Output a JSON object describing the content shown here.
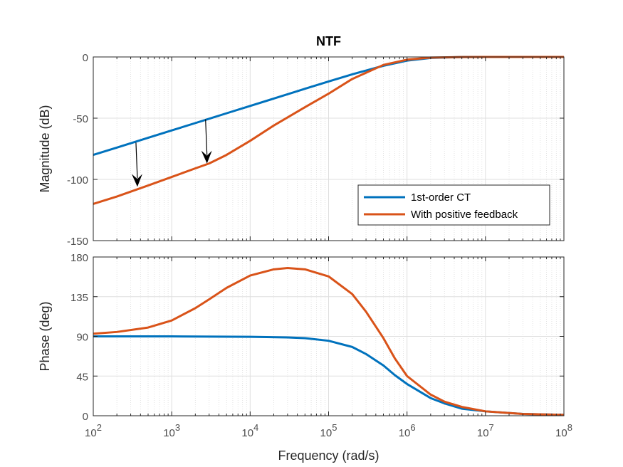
{
  "chart_data": [
    {
      "type": "line",
      "title": "NTF",
      "ylabel": "Magnitude (dB)",
      "xlabel": "",
      "x_scale": "log",
      "xlim": [
        100,
        100000000
      ],
      "ylim": [
        -150,
        0
      ],
      "yticks": [
        0,
        -50,
        -100,
        -150
      ],
      "grid": true,
      "legend_position": "bottom-right",
      "series": [
        {
          "name": "1st-order CT",
          "color": "#0072BD",
          "x": [
            100,
            200,
            500,
            1000,
            2000,
            3000,
            5000,
            10000,
            20000,
            50000,
            100000,
            200000,
            500000,
            1000000,
            2000000,
            5000000,
            10000000,
            100000000
          ],
          "y": [
            -80,
            -74,
            -66,
            -60,
            -54,
            -50.5,
            -46,
            -40,
            -34,
            -26,
            -20,
            -14.2,
            -7.2,
            -3,
            -0.8,
            -0.1,
            0,
            0
          ]
        },
        {
          "name": "With positive feedback",
          "color": "#D95319",
          "x": [
            100,
            200,
            500,
            1000,
            2000,
            3000,
            5000,
            10000,
            20000,
            50000,
            100000,
            200000,
            500000,
            1000000,
            2000000,
            5000000,
            10000000,
            100000000
          ],
          "y": [
            -120,
            -114,
            -105,
            -98,
            -91,
            -87,
            -80,
            -68.5,
            -56,
            -41,
            -30,
            -18,
            -6.5,
            -2.2,
            -0.5,
            -0.1,
            0,
            0
          ]
        }
      ],
      "annotations": [
        {
          "type": "arrow",
          "x": 350,
          "y_from": -70,
          "y_to": -106
        },
        {
          "type": "arrow",
          "x": 2700,
          "y_from": -51,
          "y_to": -87
        }
      ]
    },
    {
      "type": "line",
      "title": "",
      "ylabel": "Phase (deg)",
      "xlabel": "Frequency  (rad/s)",
      "x_scale": "log",
      "xlim": [
        100,
        100000000
      ],
      "ylim": [
        0,
        180
      ],
      "yticks": [
        0,
        45,
        90,
        135,
        180
      ],
      "xticks": [
        100,
        1000,
        10000,
        100000,
        1000000,
        10000000,
        100000000
      ],
      "xtick_labels": [
        {
          "base": "10",
          "exp": "2"
        },
        {
          "base": "10",
          "exp": "3"
        },
        {
          "base": "10",
          "exp": "4"
        },
        {
          "base": "10",
          "exp": "5"
        },
        {
          "base": "10",
          "exp": "6"
        },
        {
          "base": "10",
          "exp": "7"
        },
        {
          "base": "10",
          "exp": "8"
        }
      ],
      "grid": true,
      "series": [
        {
          "name": "1st-order CT",
          "color": "#0072BD",
          "x": [
            100,
            1000,
            10000,
            30000,
            50000,
            100000,
            200000,
            300000,
            500000,
            700000,
            1000000,
            2000000,
            3000000,
            5000000,
            10000000,
            30000000,
            100000000
          ],
          "y": [
            90,
            90,
            89.5,
            88.8,
            88,
            85,
            78,
            70,
            57,
            46,
            36,
            20,
            14,
            8,
            5,
            2,
            1
          ]
        },
        {
          "name": "With positive feedback",
          "color": "#D95319",
          "x": [
            100,
            200,
            500,
            1000,
            2000,
            3000,
            5000,
            10000,
            20000,
            30000,
            50000,
            100000,
            200000,
            300000,
            500000,
            700000,
            1000000,
            2000000,
            3000000,
            5000000,
            10000000,
            30000000,
            100000000
          ],
          "y": [
            93,
            95,
            100,
            108,
            122,
            132,
            145,
            159,
            166,
            167.5,
            166,
            158,
            138,
            118,
            88,
            65,
            45,
            24,
            16,
            10,
            5,
            2,
            1
          ]
        }
      ]
    }
  ]
}
